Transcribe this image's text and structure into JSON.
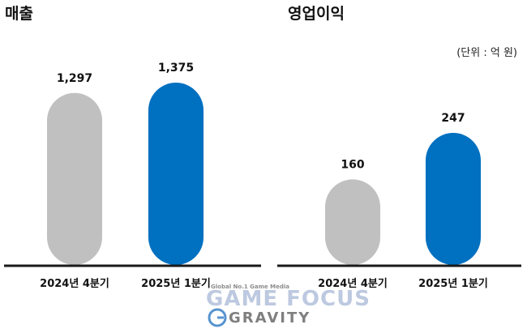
{
  "unit_label": "(단위 : 억 원)",
  "watermark": {
    "tagline": "Global No.1 Game Media",
    "game_text": "GAME FOCUS",
    "gravity_text": "GRAVITY"
  },
  "colors": {
    "gray_bar": "#c0c0c0",
    "blue_bar": "#0070c0",
    "axis": "#1a1a1a"
  },
  "chart_data": [
    {
      "type": "bar",
      "title": "매출",
      "categories": [
        "2024년 4분기",
        "2025년 1분기"
      ],
      "values": [
        1297,
        1375
      ],
      "value_labels": [
        "1,297",
        "1,375"
      ],
      "bar_colors": [
        "#c0c0c0",
        "#0070c0"
      ]
    },
    {
      "type": "bar",
      "title": "영업이익",
      "categories": [
        "2024년 4분기",
        "2025년 1분기"
      ],
      "values": [
        160,
        247
      ],
      "value_labels": [
        "160",
        "247"
      ],
      "bar_colors": [
        "#c0c0c0",
        "#0070c0"
      ]
    }
  ]
}
